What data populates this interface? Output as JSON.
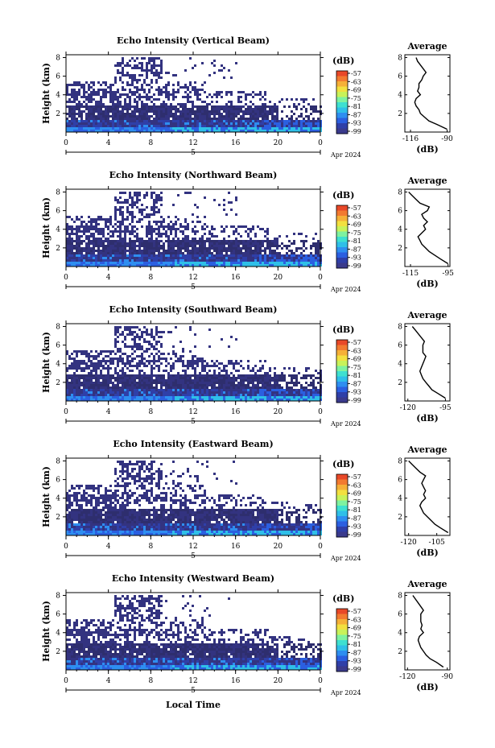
{
  "figure": {
    "xlabel": "Local Time",
    "date_label": "Apr 2024",
    "day_label": "5",
    "avg_title": "Average",
    "unit": "(dB)"
  },
  "colorbar": {
    "labels": [
      "-57",
      "-63",
      "-69",
      "-75",
      "-81",
      "-87",
      "-93",
      "-99"
    ],
    "colors": [
      "#3a3a8c",
      "#2f3fa8",
      "#2b5fe0",
      "#2e8ef0",
      "#2fbfe8",
      "#3ee0d0",
      "#7ef2a0",
      "#c8f25a",
      "#f2e040",
      "#f5b038",
      "#f27a30",
      "#e84828"
    ]
  },
  "panels": [
    {
      "id": "vertical",
      "title": "Echo Intensity (Vertical Beam)",
      "ylabel": "Height (km)",
      "avg_xticks": [
        "-116",
        "-90"
      ]
    },
    {
      "id": "northward",
      "title": "Echo Intensity (Northward Beam)",
      "ylabel": "Height (km)",
      "avg_xticks": [
        "-115",
        "-95"
      ]
    },
    {
      "id": "southward",
      "title": "Echo Intensity (Southward Beam)",
      "ylabel": "Height (km)",
      "avg_xticks": [
        "-120",
        "-95"
      ]
    },
    {
      "id": "eastward",
      "title": "Echo Intensity (Eastward Beam)",
      "ylabel": "Height (km)",
      "avg_xticks": [
        "-120",
        "-105"
      ]
    },
    {
      "id": "westward",
      "title": "Echo Intensity (Westward Beam)",
      "ylabel": "Height (km)",
      "avg_xticks": [
        "-120",
        "-90"
      ]
    }
  ],
  "chart_data": [
    {
      "type": "heatmap",
      "title": "Echo Intensity (Vertical Beam)",
      "ylabel": "Height (km)",
      "xticks": [
        "0",
        "4",
        "8",
        "12",
        "16",
        "20",
        "0"
      ],
      "yticks": [
        "2",
        "4",
        "6",
        "8"
      ],
      "xlim": [
        0,
        24
      ],
      "ylim": [
        0,
        8.3
      ],
      "colorbar_range_db": [
        -99,
        -57
      ],
      "layers": [
        {
          "name": "surface",
          "ymin": 0.3,
          "ymax": 1.4,
          "x0": 0,
          "x1": 24
        },
        {
          "name": "mid",
          "ymin": 1.4,
          "ymax": 3.5,
          "x0": 0,
          "x1": 22
        },
        {
          "name": "upper",
          "ymin": 3.5,
          "ymax": 4.5,
          "x0": 0,
          "x1": 19
        },
        {
          "name": "plume",
          "ymin": 4.5,
          "ymax": 8.2,
          "x0": 4.5,
          "x1": 9
        }
      ]
    },
    {
      "type": "line",
      "title": "Average",
      "xlabel": "(dB)",
      "x_tick_labels": [
        "-116",
        "-90"
      ],
      "y_tick_labels": [
        "2",
        "4",
        "6",
        "8"
      ],
      "xlim": [
        -120,
        -88
      ],
      "ylim": [
        0,
        8.3
      ],
      "height_km": [
        0.3,
        0.8,
        1.2,
        1.6,
        2.0,
        2.4,
        2.8,
        3.2,
        3.6,
        4.0,
        4.4,
        4.8,
        5.2,
        5.6,
        6.0,
        6.4,
        6.8,
        7.2,
        7.6,
        8.0
      ],
      "values_db": [
        -90,
        -97,
        -103,
        -106,
        -109,
        -110,
        -112,
        -113,
        -112,
        -109,
        -111,
        -110,
        -110,
        -108,
        -107,
        -105,
        -107,
        -109,
        -111,
        -112
      ]
    },
    {
      "type": "heatmap",
      "title": "Echo Intensity (Northward Beam)",
      "ylabel": "Height (km)",
      "xticks": [
        "0",
        "4",
        "8",
        "12",
        "16",
        "20",
        "0"
      ],
      "yticks": [
        "2",
        "4",
        "6",
        "8"
      ],
      "xlim": [
        0,
        24
      ],
      "ylim": [
        0,
        8.3
      ],
      "colorbar_range_db": [
        -99,
        -57
      ]
    },
    {
      "type": "line",
      "title": "Average",
      "xlabel": "(dB)",
      "x_tick_labels": [
        "-115",
        "-95"
      ],
      "y_tick_labels": [
        "2",
        "4",
        "6",
        "8"
      ],
      "xlim": [
        -118,
        -94
      ],
      "ylim": [
        0,
        8.3
      ],
      "height_km": [
        0.3,
        0.8,
        1.2,
        1.6,
        2.0,
        2.4,
        2.8,
        3.2,
        3.6,
        4.0,
        4.4,
        4.8,
        5.2,
        5.6,
        6.0,
        6.4,
        6.8,
        7.2,
        7.6,
        8.0
      ],
      "values_db": [
        -95,
        -99,
        -102,
        -105,
        -107,
        -109,
        -110,
        -111,
        -109,
        -107,
        -108,
        -106,
        -108,
        -109,
        -106,
        -105,
        -110,
        -112,
        -114,
        -116
      ]
    },
    {
      "type": "heatmap",
      "title": "Echo Intensity (Southward Beam)",
      "ylabel": "Height (km)",
      "xticks": [
        "0",
        "4",
        "8",
        "12",
        "16",
        "20",
        "0"
      ],
      "yticks": [
        "2",
        "4",
        "6",
        "8"
      ],
      "xlim": [
        0,
        24
      ],
      "ylim": [
        0,
        8.3
      ],
      "colorbar_range_db": [
        -99,
        -57
      ]
    },
    {
      "type": "line",
      "title": "Average",
      "xlabel": "(dB)",
      "x_tick_labels": [
        "-120",
        "-95"
      ],
      "y_tick_labels": [
        "2",
        "4",
        "6",
        "8"
      ],
      "xlim": [
        -122,
        -92
      ],
      "ylim": [
        0,
        8.3
      ],
      "height_km": [
        0.3,
        0.8,
        1.2,
        1.6,
        2.0,
        2.4,
        2.8,
        3.2,
        3.6,
        4.0,
        4.4,
        4.8,
        5.2,
        5.6,
        6.0,
        6.4,
        6.8,
        7.2,
        7.6,
        8.0
      ],
      "values_db": [
        -95,
        -100,
        -104,
        -106,
        -108,
        -110,
        -111,
        -112,
        -111,
        -110,
        -109,
        -108,
        -110,
        -110,
        -110,
        -109,
        -111,
        -113,
        -115,
        -117
      ]
    },
    {
      "type": "heatmap",
      "title": "Echo Intensity (Eastward Beam)",
      "ylabel": "Height (km)",
      "xticks": [
        "0",
        "4",
        "8",
        "12",
        "16",
        "20",
        "0"
      ],
      "yticks": [
        "2",
        "4",
        "6",
        "8"
      ],
      "xlim": [
        0,
        24
      ],
      "ylim": [
        0,
        8.3
      ],
      "colorbar_range_db": [
        -99,
        -57
      ]
    },
    {
      "type": "line",
      "title": "Average",
      "xlabel": "(dB)",
      "x_tick_labels": [
        "-120",
        "-105"
      ],
      "y_tick_labels": [
        "2",
        "4",
        "6",
        "8"
      ],
      "xlim": [
        -122,
        -98
      ],
      "ylim": [
        0,
        8.3
      ],
      "height_km": [
        0.3,
        0.8,
        1.2,
        1.6,
        2.0,
        2.4,
        2.8,
        3.2,
        3.6,
        4.0,
        4.4,
        4.8,
        5.2,
        5.6,
        6.0,
        6.4,
        6.8,
        7.2,
        7.6,
        8.0
      ],
      "values_db": [
        -99,
        -103,
        -106,
        -108,
        -110,
        -112,
        -113,
        -114,
        -113,
        -111,
        -112,
        -111,
        -112,
        -113,
        -112,
        -111,
        -114,
        -116,
        -118,
        -120
      ]
    },
    {
      "type": "heatmap",
      "title": "Echo Intensity (Westward Beam)",
      "ylabel": "Height (km)",
      "xlabel": "Local Time",
      "xticks": [
        "0",
        "4",
        "8",
        "12",
        "16",
        "20",
        "0"
      ],
      "yticks": [
        "2",
        "4",
        "6",
        "8"
      ],
      "xlim": [
        0,
        24
      ],
      "ylim": [
        0,
        8.3
      ],
      "colorbar_range_db": [
        -99,
        -57
      ]
    },
    {
      "type": "line",
      "title": "Average",
      "xlabel": "(dB)",
      "x_tick_labels": [
        "-120",
        "-90"
      ],
      "y_tick_labels": [
        "2",
        "4",
        "6",
        "8"
      ],
      "xlim": [
        -122,
        -88
      ],
      "ylim": [
        0,
        8.3
      ],
      "height_km": [
        0.3,
        0.8,
        1.2,
        1.6,
        2.0,
        2.4,
        2.8,
        3.2,
        3.6,
        4.0,
        4.4,
        4.8,
        5.2,
        5.6,
        6.0,
        6.4,
        6.8,
        7.2,
        7.6,
        8.0
      ],
      "values_db": [
        -93,
        -98,
        -103,
        -106,
        -108,
        -110,
        -111,
        -112,
        -111,
        -108,
        -110,
        -109,
        -110,
        -110,
        -110,
        -108,
        -110,
        -112,
        -114,
        -116
      ]
    }
  ]
}
